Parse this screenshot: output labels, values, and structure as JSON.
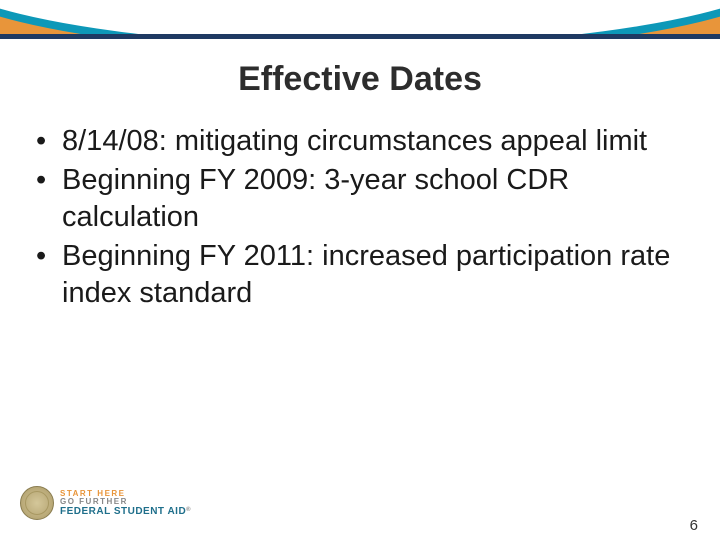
{
  "colors": {
    "orange_band": "#e8953a",
    "teal_swoosh": "#0d98b8",
    "navy_line": "#1f3a63",
    "title_text": "#2d2d2d",
    "body_text": "#1a1a1a",
    "logo_orange": "#e8953a",
    "logo_gray": "#888888",
    "logo_teal": "#1f6f8b",
    "background": "#ffffff"
  },
  "typography": {
    "title_fontsize": 34,
    "title_weight": "bold",
    "body_fontsize": 29,
    "font_family": "Verdana"
  },
  "title": "Effective Dates",
  "bullets": [
    "8/14/08: mitigating circumstances appeal limit",
    "Beginning FY 2009: 3-year school CDR calculation",
    "Beginning FY 2011:  increased participation rate index standard"
  ],
  "footer": {
    "logo": {
      "line1": "START HERE",
      "line2": "GO FURTHER",
      "line3": "FEDERAL STUDENT AID",
      "registered": "®"
    },
    "page_number": "6"
  }
}
